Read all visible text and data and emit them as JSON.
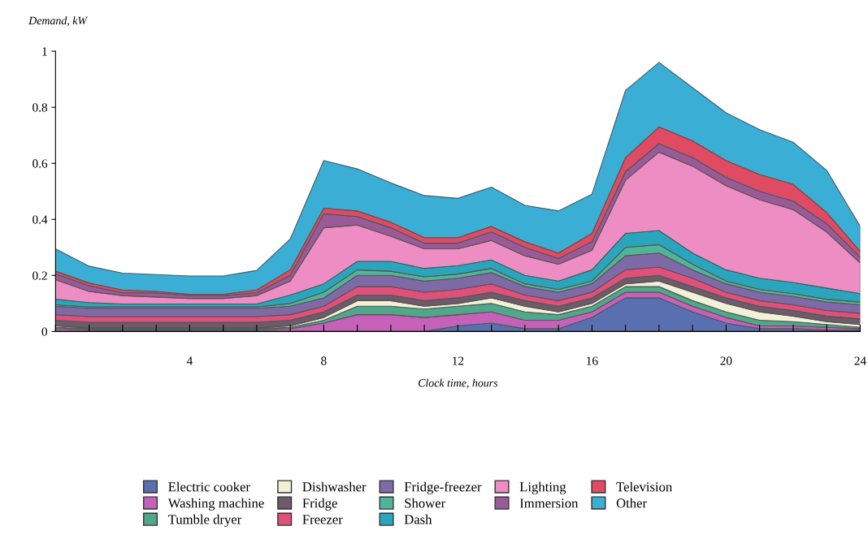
{
  "chart_data": {
    "type": "area",
    "stacked": true,
    "xlabel": "Clock time, hours",
    "ylabel": "Demand, kW",
    "x": [
      0,
      1,
      2,
      3,
      4,
      5,
      6,
      7,
      8,
      9,
      10,
      11,
      12,
      13,
      14,
      15,
      16,
      17,
      18,
      19,
      20,
      21,
      22,
      23,
      24
    ],
    "xlim": [
      0,
      24
    ],
    "xticks": [
      {
        "value": 0,
        "label": null
      },
      {
        "value": 1,
        "label": null
      },
      {
        "value": 2,
        "label": null
      },
      {
        "value": 3,
        "label": null
      },
      4,
      {
        "value": 5,
        "label": null
      },
      {
        "value": 6,
        "label": null
      },
      {
        "value": 7,
        "label": null
      },
      8,
      {
        "value": 9,
        "label": null
      },
      {
        "value": 10,
        "label": null
      },
      {
        "value": 11,
        "label": null
      },
      12,
      {
        "value": 13,
        "label": null
      },
      {
        "value": 14,
        "label": null
      },
      {
        "value": 15,
        "label": null
      },
      16,
      {
        "value": 17,
        "label": null
      },
      {
        "value": 18,
        "label": null
      },
      {
        "value": 19,
        "label": null
      },
      20,
      {
        "value": 21,
        "label": null
      },
      {
        "value": 22,
        "label": null
      },
      {
        "value": 23,
        "label": null
      },
      24
    ],
    "ylim": [
      0,
      1
    ],
    "yticks": [
      0,
      0.2,
      0.4,
      0.6,
      0.8,
      1
    ],
    "grid": false,
    "legend": "bottom",
    "series": [
      {
        "name": "Electric cooker",
        "color": "#5a6fb0",
        "values": [
          0,
          0,
          0,
          0,
          0,
          0,
          0,
          0,
          0,
          0,
          0,
          0,
          0.02,
          0.03,
          0.01,
          0.01,
          0.05,
          0.12,
          0.12,
          0.07,
          0.03,
          0.01,
          0.01,
          0.005,
          0.005
        ]
      },
      {
        "name": "Washing machine",
        "color": "#c561b8",
        "values": [
          0.01,
          0.005,
          0.005,
          0.005,
          0.005,
          0.005,
          0.005,
          0.01,
          0.03,
          0.06,
          0.06,
          0.05,
          0.04,
          0.04,
          0.03,
          0.03,
          0.02,
          0.02,
          0.02,
          0.02,
          0.02,
          0.01,
          0.01,
          0.01,
          0.005
        ]
      },
      {
        "name": "Tumble dryer",
        "color": "#4fa88a",
        "values": [
          0.005,
          0.005,
          0.005,
          0.005,
          0.005,
          0.005,
          0.005,
          0.005,
          0.01,
          0.03,
          0.03,
          0.03,
          0.03,
          0.03,
          0.03,
          0.02,
          0.02,
          0.02,
          0.02,
          0.02,
          0.02,
          0.02,
          0.015,
          0.01,
          0.005
        ]
      },
      {
        "name": "Dishwasher",
        "color": "#f3f0d8",
        "values": [
          0.005,
          0.003,
          0.003,
          0.003,
          0.003,
          0.003,
          0.003,
          0.005,
          0.01,
          0.02,
          0.02,
          0.01,
          0.01,
          0.02,
          0.02,
          0.01,
          0.01,
          0.01,
          0.02,
          0.03,
          0.03,
          0.03,
          0.02,
          0.01,
          0.01
        ]
      },
      {
        "name": "Fridge",
        "color": "#6e5a6a",
        "values": [
          0.02,
          0.02,
          0.02,
          0.02,
          0.02,
          0.02,
          0.02,
          0.02,
          0.02,
          0.02,
          0.02,
          0.02,
          0.02,
          0.02,
          0.02,
          0.02,
          0.02,
          0.02,
          0.02,
          0.02,
          0.02,
          0.02,
          0.02,
          0.02,
          0.02
        ]
      },
      {
        "name": "Freezer",
        "color": "#e0507a",
        "values": [
          0.02,
          0.02,
          0.02,
          0.02,
          0.02,
          0.02,
          0.02,
          0.02,
          0.02,
          0.03,
          0.03,
          0.03,
          0.03,
          0.03,
          0.02,
          0.02,
          0.02,
          0.03,
          0.03,
          0.03,
          0.02,
          0.02,
          0.02,
          0.02,
          0.02
        ]
      },
      {
        "name": "Fridge-freezer",
        "color": "#7f6aa8",
        "values": [
          0.03,
          0.03,
          0.03,
          0.03,
          0.03,
          0.03,
          0.03,
          0.03,
          0.03,
          0.04,
          0.04,
          0.04,
          0.04,
          0.04,
          0.03,
          0.03,
          0.03,
          0.05,
          0.05,
          0.03,
          0.03,
          0.03,
          0.03,
          0.03,
          0.03
        ]
      },
      {
        "name": "Shower",
        "color": "#4fb598",
        "values": [
          0.005,
          0.005,
          0.005,
          0.005,
          0.005,
          0.005,
          0.005,
          0.01,
          0.02,
          0.02,
          0.015,
          0.015,
          0.015,
          0.015,
          0.01,
          0.01,
          0.01,
          0.03,
          0.03,
          0.02,
          0.01,
          0.01,
          0.01,
          0.01,
          0.01
        ]
      },
      {
        "name": "Dash",
        "color": "#2aa5be",
        "values": [
          0.02,
          0.015,
          0.01,
          0.01,
          0.01,
          0.01,
          0.01,
          0.03,
          0.03,
          0.03,
          0.035,
          0.03,
          0.03,
          0.03,
          0.03,
          0.03,
          0.04,
          0.05,
          0.05,
          0.04,
          0.04,
          0.04,
          0.04,
          0.04,
          0.03
        ]
      },
      {
        "name": "Lighting",
        "color": "#ee8cc4",
        "values": [
          0.07,
          0.04,
          0.03,
          0.025,
          0.02,
          0.02,
          0.03,
          0.05,
          0.2,
          0.13,
          0.09,
          0.07,
          0.06,
          0.07,
          0.07,
          0.06,
          0.07,
          0.19,
          0.28,
          0.31,
          0.3,
          0.28,
          0.26,
          0.2,
          0.11
        ]
      },
      {
        "name": "Immersion",
        "color": "#9a5a98",
        "values": [
          0.02,
          0.02,
          0.01,
          0.015,
          0.01,
          0.01,
          0.01,
          0.02,
          0.05,
          0.03,
          0.03,
          0.02,
          0.02,
          0.03,
          0.03,
          0.02,
          0.03,
          0.03,
          0.03,
          0.03,
          0.03,
          0.03,
          0.03,
          0.03,
          0.02
        ]
      },
      {
        "name": "Television",
        "color": "#e04a62",
        "values": [
          0.01,
          0.01,
          0.01,
          0.005,
          0.005,
          0.005,
          0.01,
          0.02,
          0.02,
          0.02,
          0.02,
          0.02,
          0.02,
          0.02,
          0.02,
          0.02,
          0.03,
          0.05,
          0.06,
          0.06,
          0.06,
          0.06,
          0.06,
          0.04,
          0.02
        ]
      },
      {
        "name": "Other",
        "color": "#3aaed4",
        "values": [
          0.08,
          0.06,
          0.06,
          0.06,
          0.065,
          0.065,
          0.07,
          0.11,
          0.17,
          0.15,
          0.14,
          0.15,
          0.14,
          0.14,
          0.13,
          0.15,
          0.14,
          0.24,
          0.23,
          0.19,
          0.17,
          0.16,
          0.15,
          0.15,
          0.09
        ]
      }
    ]
  }
}
